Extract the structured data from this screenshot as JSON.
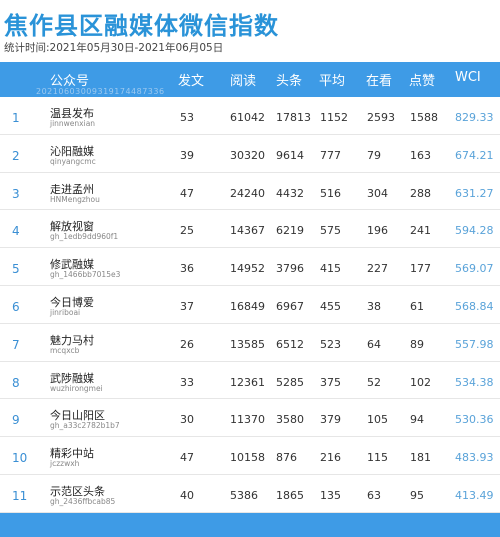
{
  "page": {
    "title": "焦作县区融媒体微信指数",
    "subtitle": "统计时间:2021年05月30日-2021年06月05日"
  },
  "table": {
    "watermark": "20210603009319174487336",
    "headers": [
      "公众号",
      "发文",
      "阅读",
      "头条",
      "平均",
      "在看",
      "点赞",
      "WCI"
    ],
    "rows": [
      {
        "rank": "1",
        "name": "温县发布",
        "account": "jinnwenxian",
        "posts": "53",
        "reads": "61042",
        "top": "17813",
        "avg": "1152",
        "watching": "2593",
        "likes": "1588",
        "wci": "829.33"
      },
      {
        "rank": "2",
        "name": "沁阳融媒",
        "account": "qinyangcmc",
        "posts": "39",
        "reads": "30320",
        "top": "9614",
        "avg": "777",
        "watching": "79",
        "likes": "163",
        "wci": "674.21"
      },
      {
        "rank": "3",
        "name": "走进孟州",
        "account": "HNMengzhou",
        "posts": "47",
        "reads": "24240",
        "top": "4432",
        "avg": "516",
        "watching": "304",
        "likes": "288",
        "wci": "631.27"
      },
      {
        "rank": "4",
        "name": "解放视窗",
        "account": "gh_1edb9dd960f1",
        "posts": "25",
        "reads": "14367",
        "top": "6219",
        "avg": "575",
        "watching": "196",
        "likes": "241",
        "wci": "594.28"
      },
      {
        "rank": "5",
        "name": "修武融媒",
        "account": "gh_1466bb7015e3",
        "posts": "36",
        "reads": "14952",
        "top": "3796",
        "avg": "415",
        "watching": "227",
        "likes": "177",
        "wci": "569.07"
      },
      {
        "rank": "6",
        "name": "今日博爱",
        "account": "jinriboai",
        "posts": "37",
        "reads": "16849",
        "top": "6967",
        "avg": "455",
        "watching": "38",
        "likes": "61",
        "wci": "568.84"
      },
      {
        "rank": "7",
        "name": "魅力马村",
        "account": "mcqxcb",
        "posts": "26",
        "reads": "13585",
        "top": "6512",
        "avg": "523",
        "watching": "64",
        "likes": "89",
        "wci": "557.98"
      },
      {
        "rank": "8",
        "name": "武陟融媒",
        "account": "wuzhirongmei",
        "posts": "33",
        "reads": "12361",
        "top": "5285",
        "avg": "375",
        "watching": "52",
        "likes": "102",
        "wci": "534.38"
      },
      {
        "rank": "9",
        "name": "今日山阳区",
        "account": "gh_a33c2782b1b7",
        "posts": "30",
        "reads": "11370",
        "top": "3580",
        "avg": "379",
        "watching": "105",
        "likes": "94",
        "wci": "530.36"
      },
      {
        "rank": "10",
        "name": "精彩中站",
        "account": "jczzwxh",
        "posts": "47",
        "reads": "10158",
        "top": "876",
        "avg": "216",
        "watching": "115",
        "likes": "181",
        "wci": "483.93"
      },
      {
        "rank": "11",
        "name": "示范区头条",
        "account": "gh_2436ffbcab85",
        "posts": "40",
        "reads": "5386",
        "top": "1865",
        "avg": "135",
        "watching": "63",
        "likes": "95",
        "wci": "413.49"
      }
    ]
  }
}
